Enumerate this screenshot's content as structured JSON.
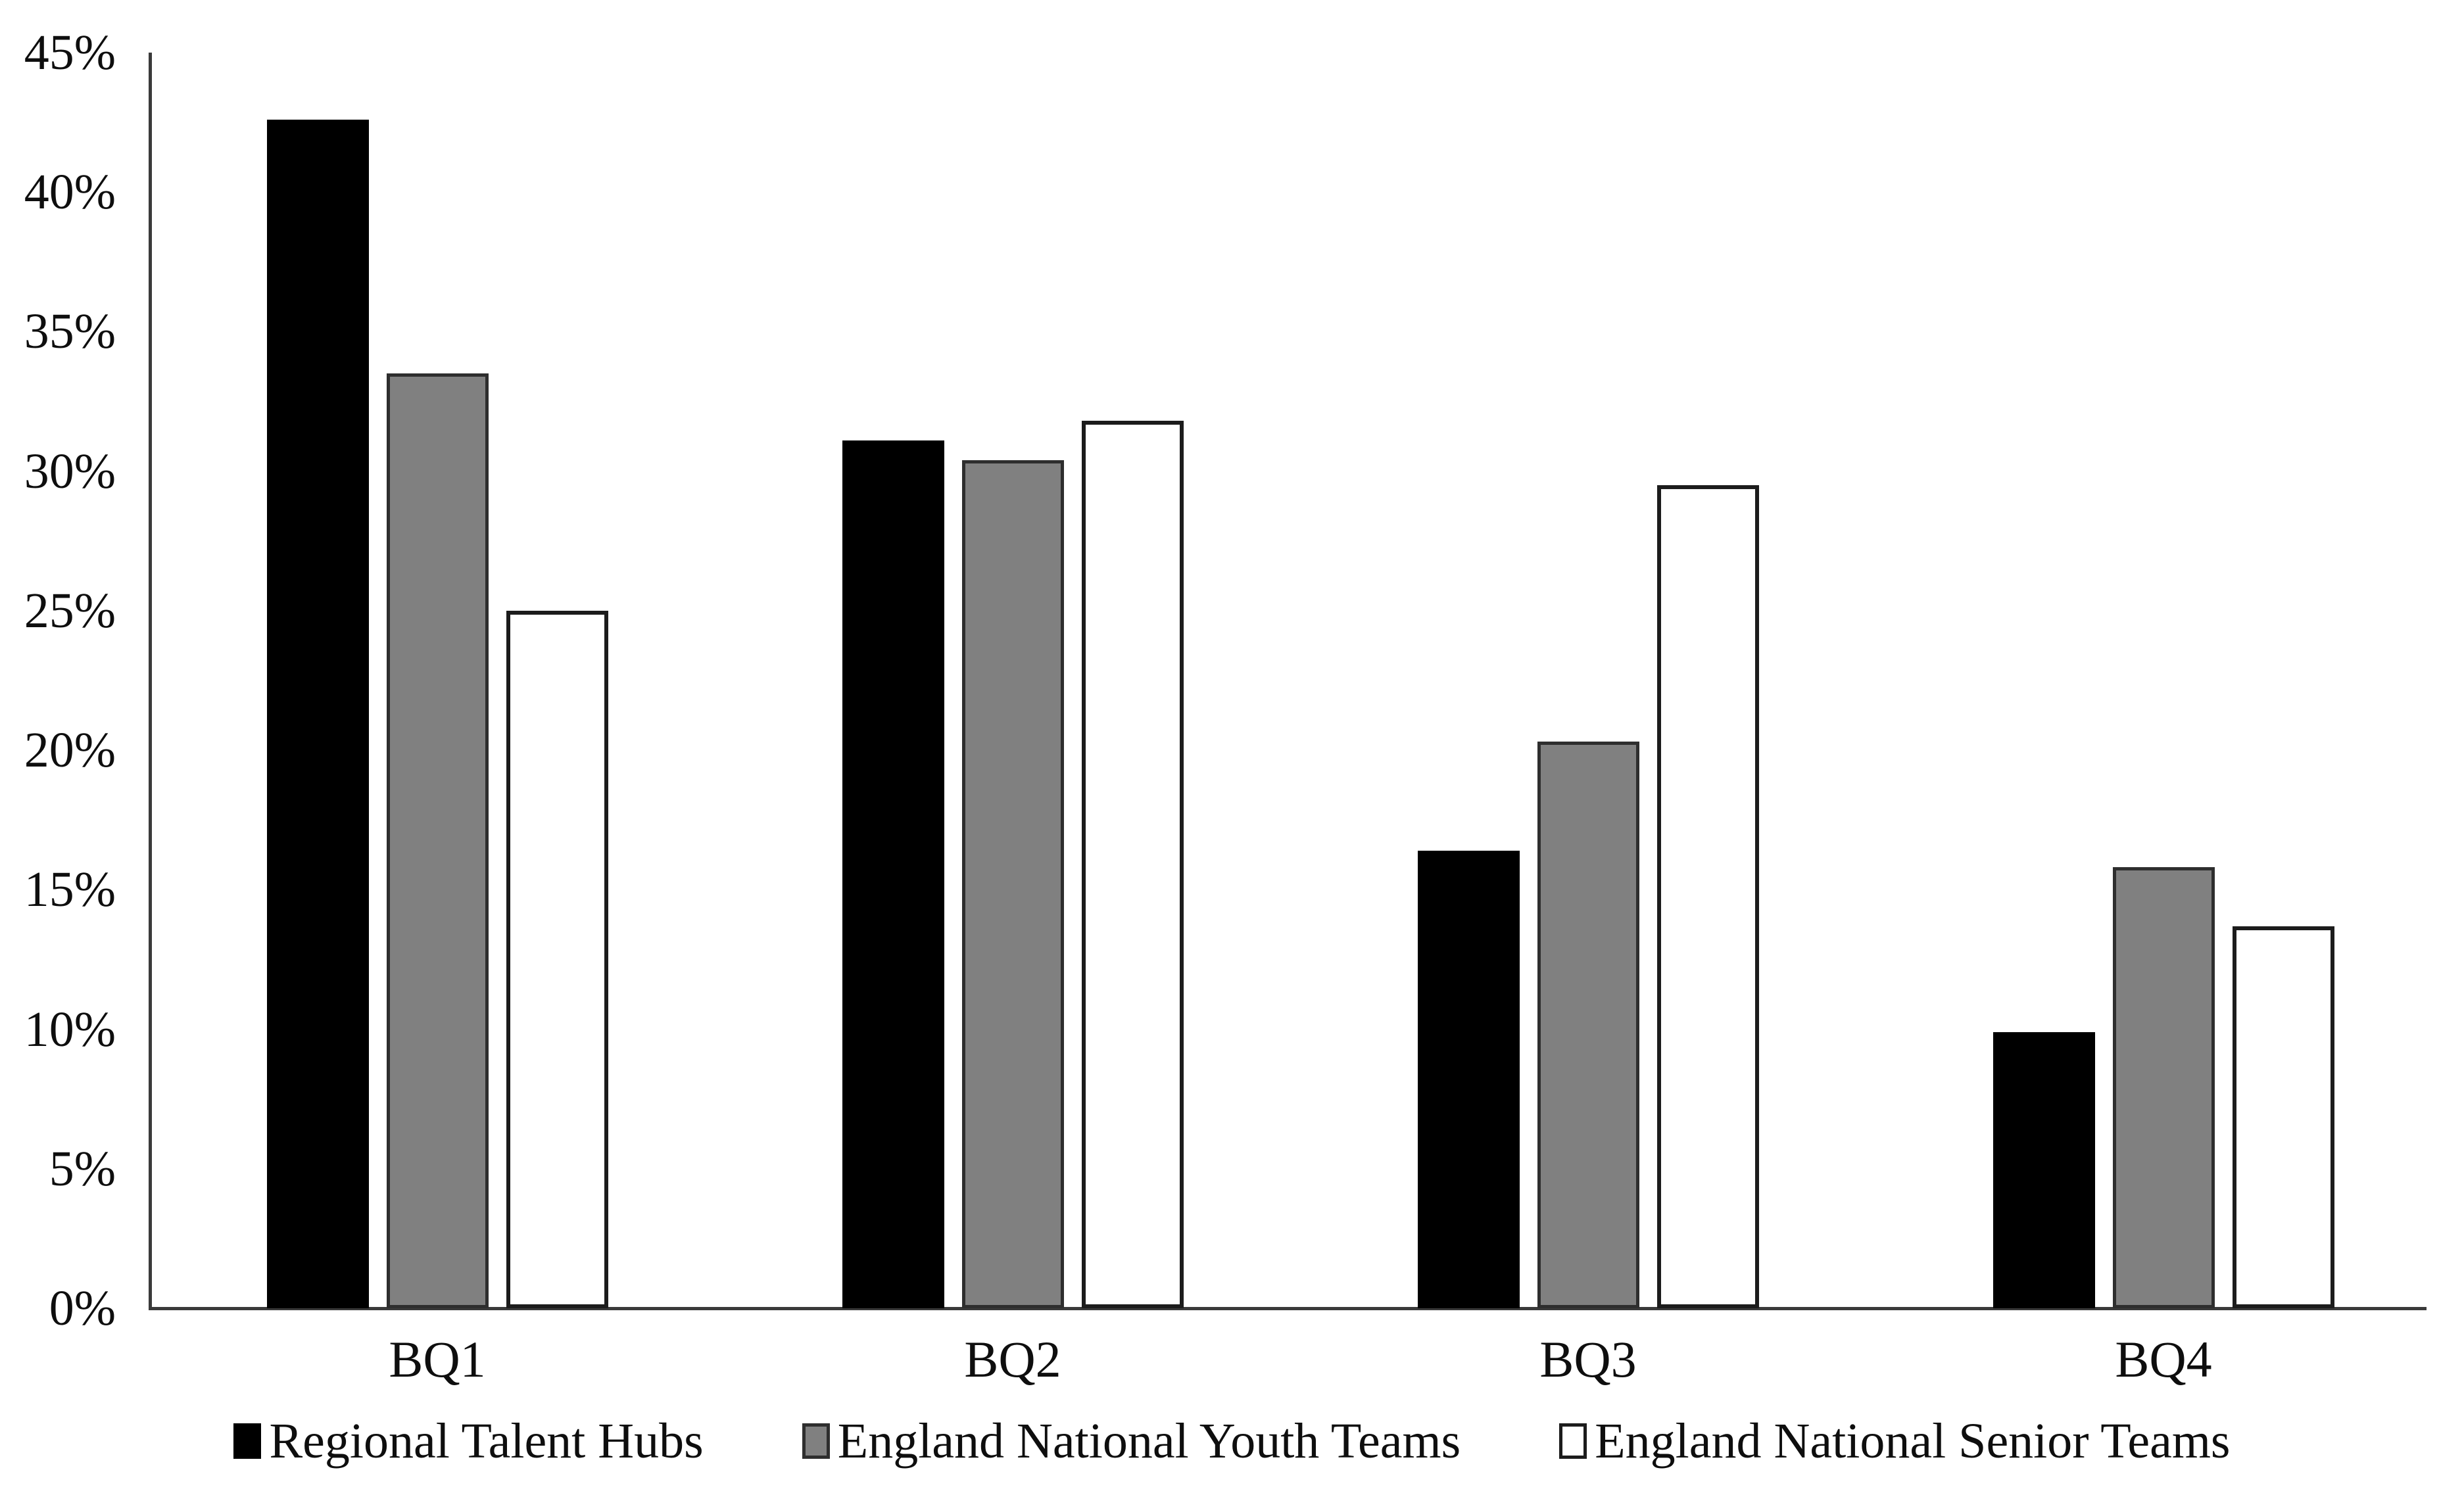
{
  "figure": {
    "background": "#ffffff",
    "text_color": "#0e0e0e",
    "axis_color": "#3a3a3a"
  },
  "chart_data": {
    "type": "bar",
    "title": "",
    "xlabel": "",
    "ylabel": "",
    "categories": [
      "BQ1",
      "BQ2",
      "BQ3",
      "BQ4"
    ],
    "series": [
      {
        "name": "Regional Talent Hubs",
        "fill": "#000000",
        "border": "#000000",
        "values": [
          42.6,
          31.1,
          16.4,
          9.9
        ]
      },
      {
        "name": "England National Youth Teams",
        "fill": "#808080",
        "border": "#2e2e2e",
        "values": [
          33.5,
          30.4,
          20.3,
          15.8
        ]
      },
      {
        "name": "England National Senior Teams",
        "fill": "#ffffff",
        "border": "#1c1c1c",
        "values": [
          25.0,
          31.8,
          29.5,
          13.7
        ]
      }
    ],
    "y_axis": {
      "min": 0,
      "max": 45,
      "step": 5,
      "tick_suffix": "%"
    },
    "grid": false,
    "legend_position": "bottom"
  }
}
